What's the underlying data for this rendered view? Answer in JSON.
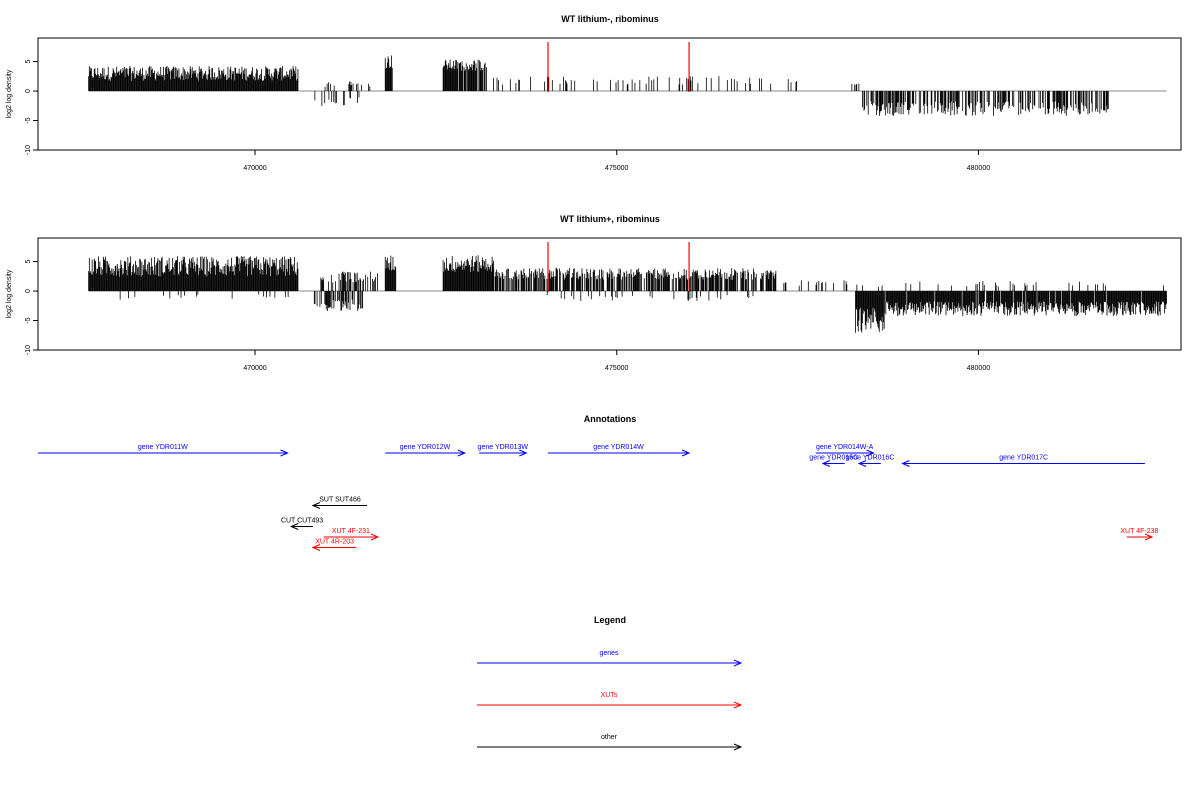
{
  "chart_data": [
    {
      "type": "bar",
      "title": "WT lithium-, ribominus",
      "ylabel": "log2 log density",
      "xlim": [
        467000,
        482800
      ],
      "ylim": [
        -10,
        9
      ],
      "yticks": [
        -10,
        -5,
        0,
        5
      ],
      "xticks": [
        470000,
        475000,
        480000
      ],
      "xtick_labels": [
        "470000",
        "475000",
        "480000"
      ],
      "ytick_labels": [
        "-10",
        "-5",
        "0",
        "5"
      ],
      "highlight_lines": [
        474050,
        476000
      ],
      "highlight_color": "#ff0000",
      "bar_color": "#000000",
      "segments": [
        {
          "start": 467700,
          "end": 470600,
          "base": 2.5,
          "amp": 2.5,
          "sign": 1,
          "density": 1.0
        },
        {
          "start": 470750,
          "end": 471500,
          "base": -1.5,
          "amp": 1.5,
          "sign": -1,
          "density": 0.25
        },
        {
          "start": 470900,
          "end": 471600,
          "base": 1.0,
          "amp": 1.0,
          "sign": 1,
          "density": 0.12
        },
        {
          "start": 471800,
          "end": 471900,
          "base": 4.5,
          "amp": 2.5,
          "sign": 1,
          "density": 1.0
        },
        {
          "start": 472600,
          "end": 473200,
          "base": 4.0,
          "amp": 2.0,
          "sign": 1,
          "density": 0.9
        },
        {
          "start": 473200,
          "end": 477500,
          "base": 1.5,
          "amp": 1.5,
          "sign": 1,
          "density": 0.12
        },
        {
          "start": 478250,
          "end": 478350,
          "base": 1.0,
          "amp": 0.5,
          "sign": 1,
          "density": 0.5
        },
        {
          "start": 478350,
          "end": 481800,
          "base": -2.5,
          "amp": 2.5,
          "sign": -1,
          "density": 0.55
        }
      ]
    },
    {
      "type": "bar",
      "title": "WT lithium+, ribominus",
      "ylabel": "log2 log density",
      "xlim": [
        467000,
        482800
      ],
      "ylim": [
        -10,
        9
      ],
      "yticks": [
        -10,
        -5,
        0,
        5
      ],
      "xticks": [
        470000,
        475000,
        480000
      ],
      "xtick_labels": [
        "470000",
        "475000",
        "480000"
      ],
      "ytick_labels": [
        "-10",
        "-5",
        "0",
        "5"
      ],
      "highlight_lines": [
        474050,
        476000
      ],
      "highlight_color": "#ff0000",
      "bar_color": "#000000",
      "segments": [
        {
          "start": 467700,
          "end": 470600,
          "base": 3.5,
          "amp": 3.5,
          "sign": 1,
          "density": 1.0
        },
        {
          "start": 468000,
          "end": 470500,
          "base": -0.8,
          "amp": 1.0,
          "sign": -1,
          "density": 0.05
        },
        {
          "start": 470800,
          "end": 471500,
          "base": -2.0,
          "amp": 2.0,
          "sign": -1,
          "density": 0.55
        },
        {
          "start": 470900,
          "end": 471700,
          "base": 2.0,
          "amp": 2.0,
          "sign": 1,
          "density": 0.45
        },
        {
          "start": 471800,
          "end": 471950,
          "base": 4.0,
          "amp": 3.0,
          "sign": 1,
          "density": 1.0
        },
        {
          "start": 472600,
          "end": 473300,
          "base": 4.0,
          "amp": 3.0,
          "sign": 1,
          "density": 1.0
        },
        {
          "start": 473300,
          "end": 477200,
          "base": 2.5,
          "amp": 2.0,
          "sign": 1,
          "density": 0.7
        },
        {
          "start": 474000,
          "end": 476900,
          "base": -1.0,
          "amp": 1.0,
          "sign": -1,
          "density": 0.08
        },
        {
          "start": 477300,
          "end": 478200,
          "base": 1.2,
          "amp": 1.0,
          "sign": 1,
          "density": 0.15
        },
        {
          "start": 478300,
          "end": 478700,
          "base": -4.0,
          "amp": 4.5,
          "sign": -1,
          "density": 1.0
        },
        {
          "start": 478700,
          "end": 482600,
          "base": -2.5,
          "amp": 2.5,
          "sign": -1,
          "density": 0.95
        },
        {
          "start": 478300,
          "end": 482600,
          "base": 1.0,
          "amp": 1.0,
          "sign": 1,
          "density": 0.07
        }
      ]
    }
  ],
  "annotations": {
    "title": "Annotations",
    "xlim": [
      467000,
      482800
    ],
    "features": [
      {
        "label": "gene YDR011W",
        "start": 467000,
        "end": 470450,
        "strand": "+",
        "row": 0,
        "type": "genes"
      },
      {
        "label": "gene YDR012W",
        "start": 471800,
        "end": 472900,
        "strand": "+",
        "row": 0,
        "type": "genes"
      },
      {
        "label": "gene YDR013W",
        "start": 473100,
        "end": 473750,
        "strand": "+",
        "row": 0,
        "type": "genes"
      },
      {
        "label": "gene YDR014W",
        "start": 474050,
        "end": 476000,
        "strand": "+",
        "row": 0,
        "type": "genes"
      },
      {
        "label": "gene YDR014W-A",
        "start": 477750,
        "end": 478550,
        "strand": "+",
        "row": 0,
        "type": "genes"
      },
      {
        "label": "gene YDR015C",
        "start": 477850,
        "end": 478150,
        "strand": "-",
        "row": 1,
        "type": "genes"
      },
      {
        "label": "gene YDR016C",
        "start": 478350,
        "end": 478650,
        "strand": "-",
        "row": 1,
        "type": "genes"
      },
      {
        "label": "gene YDR017C",
        "start": 478950,
        "end": 482300,
        "strand": "-",
        "row": 1,
        "type": "genes"
      },
      {
        "label": "SUT SUT466",
        "start": 470800,
        "end": 471550,
        "strand": "-",
        "row": 5,
        "type": "other"
      },
      {
        "label": "CUT CUT493",
        "start": 470500,
        "end": 470800,
        "strand": "-",
        "row": 7,
        "type": "other"
      },
      {
        "label": "XUT 4F-231",
        "start": 470950,
        "end": 471700,
        "strand": "+",
        "row": 8,
        "type": "XUTs"
      },
      {
        "label": "XUT 4R-203",
        "start": 470800,
        "end": 471400,
        "strand": "-",
        "row": 9,
        "type": "XUTs"
      },
      {
        "label": "XUT 4F-238",
        "start": 482050,
        "end": 482400,
        "strand": "+",
        "row": 8,
        "type": "XUTs"
      }
    ]
  },
  "legend": {
    "title": "Legend",
    "items": [
      {
        "label": "genes",
        "color": "#0000ff"
      },
      {
        "label": "XUTs",
        "color": "#ff0000"
      },
      {
        "label": "other",
        "color": "#000000"
      }
    ]
  },
  "colors": {
    "genes": "#0000ff",
    "XUTs": "#ff0000",
    "other": "#000000",
    "zero_line": "#888888"
  }
}
